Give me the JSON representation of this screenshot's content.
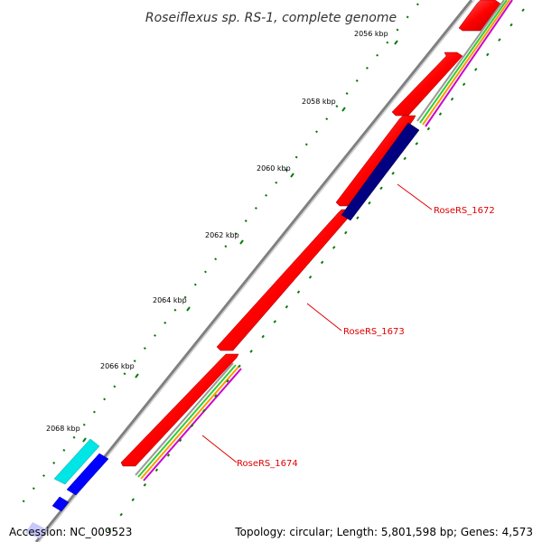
{
  "title": "Roseiflexus sp. RS-1, complete genome",
  "accession": "Accession: NC_009523",
  "summary": "Topology: circular; Length: 5,801,598 bp; Genes: 4,573",
  "ruler_labels": [
    "2056 kbp",
    "2058 kbp",
    "2060 kbp",
    "2062 kbp",
    "2064 kbp",
    "2066 kbp",
    "2068 kbp"
  ],
  "gene_labels": [
    "RoseRS_1672",
    "RoseRS_1673",
    "RoseRS_1674"
  ],
  "colors": {
    "forward_cds": "#ff0000",
    "reverse_cds": "#000080",
    "backbone": "#808080",
    "ticks": "#007700",
    "label": "#e00000",
    "cyan_feature": "#00e5e5",
    "blue_feature": "#0000ff"
  }
}
